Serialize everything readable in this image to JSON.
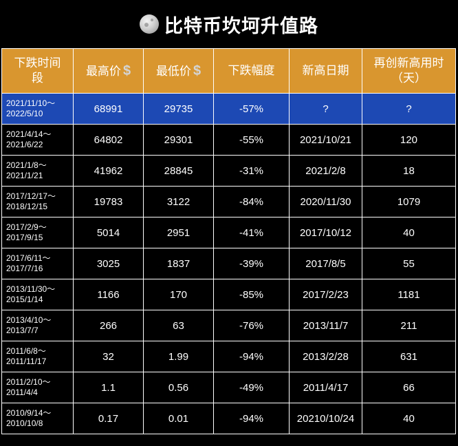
{
  "title": "比特币坎坷升值路",
  "icon": "moon-icon",
  "colors": {
    "header_bg": "#d9962f",
    "highlight_row": "#1d49b4",
    "background": "#000000"
  },
  "headers": {
    "period": "下跌时间段",
    "high": "最高价",
    "low": "最低价",
    "drop": "下跌幅度",
    "new_high_date": "新高日期",
    "days": "再创新高用时（天）",
    "currency_symbol": "$"
  },
  "rows": [
    {
      "period_start": "2021/11/10～",
      "period_end": "2022/5/10",
      "high": "68991",
      "low": "29735",
      "drop": "-57%",
      "new_high_date": "?",
      "days": "?"
    },
    {
      "period_start": "2021/4/14～",
      "period_end": "2021/6/22",
      "high": "64802",
      "low": "29301",
      "drop": "-55%",
      "new_high_date": "2021/10/21",
      "days": "120"
    },
    {
      "period_start": "2021/1/8～",
      "period_end": "2021/1/21",
      "high": "41962",
      "low": "28845",
      "drop": "-31%",
      "new_high_date": "2021/2/8",
      "days": "18"
    },
    {
      "period_start": "2017/12/17～",
      "period_end": "2018/12/15",
      "high": "19783",
      "low": "3122",
      "drop": "-84%",
      "new_high_date": "2020/11/30",
      "days": "1079"
    },
    {
      "period_start": "2017/2/9～",
      "period_end": "2017/9/15",
      "high": "5014",
      "low": "2951",
      "drop": "-41%",
      "new_high_date": "2017/10/12",
      "days": "40"
    },
    {
      "period_start": "2017/6/11～",
      "period_end": "2017/7/16",
      "high": "3025",
      "low": "1837",
      "drop": "-39%",
      "new_high_date": "2017/8/5",
      "days": "55"
    },
    {
      "period_start": "2013/11/30～",
      "period_end": "2015/1/14",
      "high": "1166",
      "low": "170",
      "drop": "-85%",
      "new_high_date": "2017/2/23",
      "days": "1181"
    },
    {
      "period_start": "2013/4/10～",
      "period_end": "2013/7/7",
      "high": "266",
      "low": "63",
      "drop": "-76%",
      "new_high_date": "2013/11/7",
      "days": "211"
    },
    {
      "period_start": "2011/6/8～",
      "period_end": "2011/11/17",
      "high": "32",
      "low": "1.99",
      "drop": "-94%",
      "new_high_date": "2013/2/28",
      "days": "631"
    },
    {
      "period_start": "2011/2/10～",
      "period_end": "2011/4/4",
      "high": "1.1",
      "low": "0.56",
      "drop": "-49%",
      "new_high_date": "2011/4/17",
      "days": "66"
    },
    {
      "period_start": "2010/9/14～",
      "period_end": "2010/10/8",
      "high": "0.17",
      "low": "0.01",
      "drop": "-94%",
      "new_high_date": "20210/10/24",
      "days": "40"
    }
  ]
}
